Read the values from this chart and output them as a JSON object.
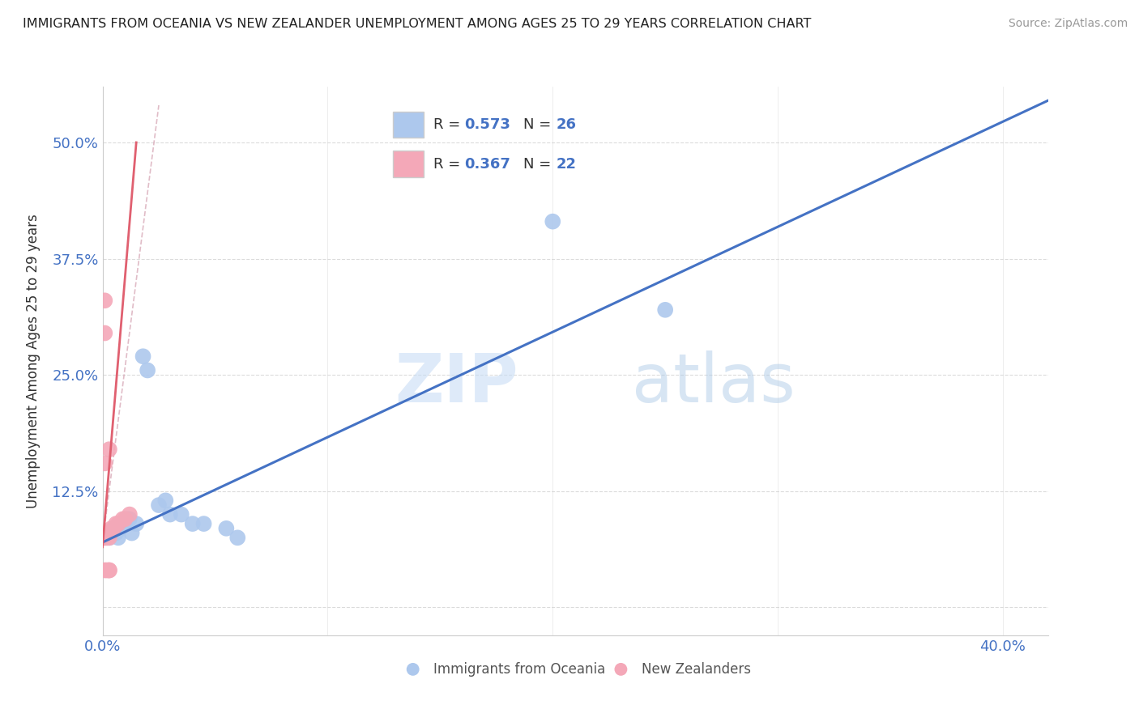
{
  "title": "IMMIGRANTS FROM OCEANIA VS NEW ZEALANDER UNEMPLOYMENT AMONG AGES 25 TO 29 YEARS CORRELATION CHART",
  "source": "Source: ZipAtlas.com",
  "ylabel": "Unemployment Among Ages 25 to 29 years",
  "xlim": [
    0.0,
    0.42
  ],
  "ylim": [
    -0.03,
    0.56
  ],
  "x_ticks": [
    0.0,
    0.1,
    0.2,
    0.3,
    0.4
  ],
  "y_ticks": [
    0.0,
    0.125,
    0.25,
    0.375,
    0.5
  ],
  "blue_color": "#adc8ed",
  "blue_line_color": "#4472c4",
  "pink_color": "#f4a8b8",
  "pink_line_color": "#e06070",
  "pink_dash_color": "#d4a0b0",
  "blue_scatter": [
    [
      0.001,
      0.075
    ],
    [
      0.002,
      0.075
    ],
    [
      0.003,
      0.075
    ],
    [
      0.004,
      0.08
    ],
    [
      0.005,
      0.085
    ],
    [
      0.006,
      0.08
    ],
    [
      0.007,
      0.075
    ],
    [
      0.008,
      0.085
    ],
    [
      0.009,
      0.09
    ],
    [
      0.01,
      0.09
    ],
    [
      0.011,
      0.095
    ],
    [
      0.012,
      0.095
    ],
    [
      0.013,
      0.08
    ],
    [
      0.015,
      0.09
    ],
    [
      0.018,
      0.27
    ],
    [
      0.02,
      0.255
    ],
    [
      0.025,
      0.11
    ],
    [
      0.028,
      0.115
    ],
    [
      0.03,
      0.1
    ],
    [
      0.035,
      0.1
    ],
    [
      0.04,
      0.09
    ],
    [
      0.045,
      0.09
    ],
    [
      0.055,
      0.085
    ],
    [
      0.06,
      0.075
    ],
    [
      0.2,
      0.415
    ],
    [
      0.25,
      0.32
    ]
  ],
  "pink_scatter": [
    [
      0.001,
      0.075
    ],
    [
      0.001,
      0.075
    ],
    [
      0.001,
      0.08
    ],
    [
      0.002,
      0.08
    ],
    [
      0.002,
      0.075
    ],
    [
      0.003,
      0.075
    ],
    [
      0.003,
      0.08
    ],
    [
      0.004,
      0.085
    ],
    [
      0.005,
      0.085
    ],
    [
      0.006,
      0.09
    ],
    [
      0.007,
      0.09
    ],
    [
      0.009,
      0.095
    ],
    [
      0.01,
      0.095
    ],
    [
      0.012,
      0.1
    ],
    [
      0.001,
      0.155
    ],
    [
      0.003,
      0.17
    ],
    [
      0.001,
      0.295
    ],
    [
      0.001,
      0.33
    ],
    [
      0.001,
      0.04
    ],
    [
      0.002,
      0.04
    ],
    [
      0.003,
      0.04
    ],
    [
      0.003,
      0.04
    ]
  ],
  "blue_R": 0.573,
  "blue_N": 26,
  "pink_R": 0.367,
  "pink_N": 22,
  "watermark_zip": "ZIP",
  "watermark_atlas": "atlas",
  "legend_label_blue": "Immigrants from Oceania",
  "legend_label_pink": "New Zealanders",
  "background_color": "#ffffff",
  "grid_color": "#cccccc"
}
